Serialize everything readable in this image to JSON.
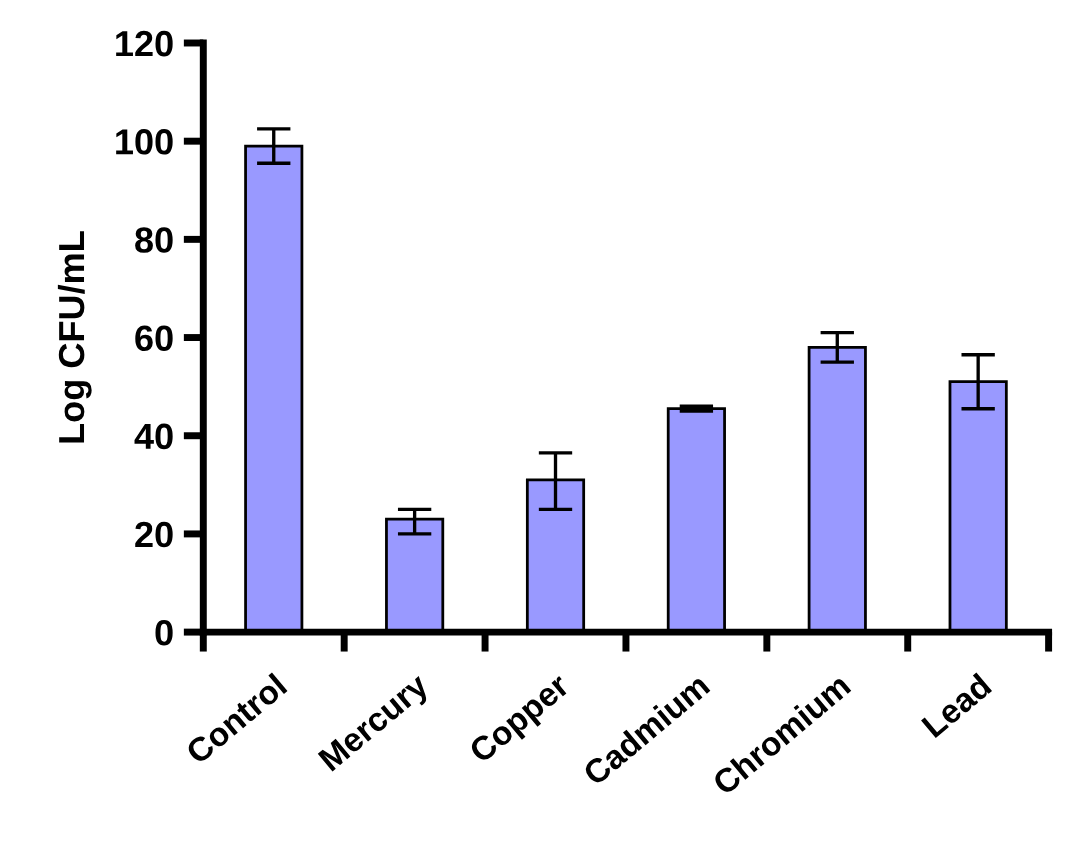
{
  "chart_data": {
    "type": "bar",
    "ylabel": "Log CFU/mL",
    "categories": [
      "Control",
      "Mercury",
      "Copper",
      "Cadmium",
      "Chromium",
      "Lead"
    ],
    "values": [
      99,
      23,
      31,
      45.5,
      58,
      51
    ],
    "errors": [
      [
        95.5,
        102.5
      ],
      [
        20,
        25
      ],
      [
        25,
        36.5
      ],
      [
        45,
        46
      ],
      [
        55,
        61
      ],
      [
        45.5,
        56.5
      ]
    ],
    "color": "#9999ff",
    "ylim": [
      0,
      120
    ],
    "yticks": [
      0,
      20,
      40,
      60,
      80,
      100,
      120
    ],
    "grid": false
  }
}
